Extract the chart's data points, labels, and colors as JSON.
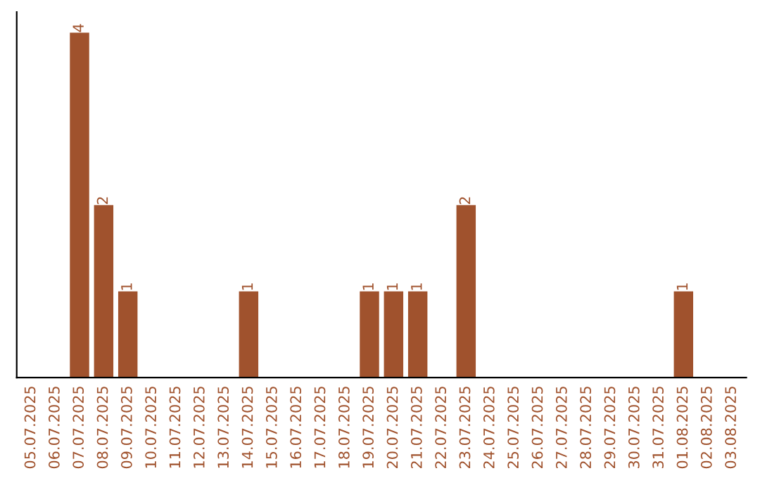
{
  "chart_data": {
    "type": "bar",
    "categories": [
      "05.07.2025",
      "06.07.2025",
      "07.07.2025",
      "08.07.2025",
      "09.07.2025",
      "10.07.2025",
      "11.07.2025",
      "12.07.2025",
      "13.07.2025",
      "14.07.2025",
      "15.07.2025",
      "16.07.2025",
      "17.07.2025",
      "18.07.2025",
      "19.07.2025",
      "20.07.2025",
      "21.07.2025",
      "22.07.2025",
      "23.07.2025",
      "24.07.2025",
      "25.07.2025",
      "26.07.2025",
      "27.07.2025",
      "28.07.2025",
      "29.07.2025",
      "30.07.2025",
      "31.07.2025",
      "01.08.2025",
      "02.08.2025",
      "03.08.2025"
    ],
    "values": [
      0,
      0,
      4,
      2,
      1,
      0,
      0,
      0,
      0,
      1,
      0,
      0,
      0,
      0,
      1,
      1,
      1,
      0,
      2,
      0,
      0,
      0,
      0,
      0,
      0,
      0,
      0,
      1,
      0,
      0
    ],
    "value_labels": [
      null,
      null,
      "4",
      "2",
      "1",
      null,
      null,
      null,
      null,
      "1",
      null,
      null,
      null,
      null,
      "1",
      "1",
      "1",
      null,
      "2",
      null,
      null,
      null,
      null,
      null,
      null,
      null,
      null,
      "1",
      null,
      null
    ],
    "color": "#a0522d",
    "tick_labels": "x",
    "grid": false,
    "legend": false
  }
}
